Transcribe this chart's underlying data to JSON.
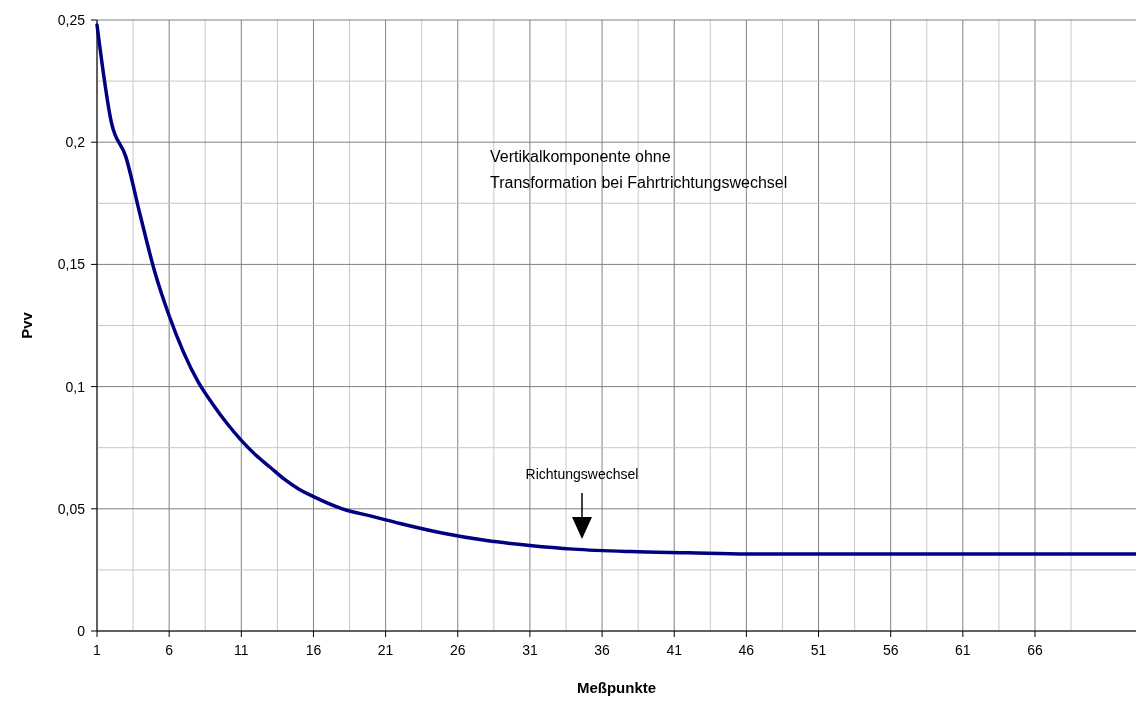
{
  "chart_data": {
    "type": "line",
    "xlabel": "Meßpunkte",
    "ylabel": "Pvv",
    "x": [
      1,
      2,
      3,
      4,
      5,
      6,
      7,
      8,
      9,
      10,
      11,
      12,
      13,
      14,
      15,
      16,
      18,
      20,
      22,
      25,
      28,
      31,
      34,
      38,
      42,
      46,
      52,
      60,
      73
    ],
    "series": [
      {
        "color": "#000080",
        "values": [
          0.248,
          0.208,
          0.194,
          0.17,
          0.147,
          0.129,
          0.114,
          0.102,
          0.093,
          0.085,
          0.078,
          0.072,
          0.067,
          0.062,
          0.058,
          0.055,
          0.05,
          0.047,
          0.044,
          0.04,
          0.037,
          0.035,
          0.0335,
          0.0325,
          0.032,
          0.0315,
          0.0315,
          0.0315,
          0.0315
        ]
      }
    ],
    "xlim": [
      1,
      73
    ],
    "xticks": [
      1,
      {
        "value": 3.5,
        "label": null
      },
      6,
      {
        "value": 8.5,
        "label": null
      },
      11,
      {
        "value": 13.5,
        "label": null
      },
      16,
      {
        "value": 18.5,
        "label": null
      },
      21,
      {
        "value": 23.5,
        "label": null
      },
      26,
      {
        "value": 28.5,
        "label": null
      },
      31,
      {
        "value": 33.5,
        "label": null
      },
      36,
      {
        "value": 38.5,
        "label": null
      },
      41,
      {
        "value": 43.5,
        "label": null
      },
      46,
      {
        "value": 48.5,
        "label": null
      },
      51,
      {
        "value": 53.5,
        "label": null
      },
      56,
      {
        "value": 58.5,
        "label": null
      },
      61,
      {
        "value": 63.5,
        "label": null
      },
      66,
      {
        "value": 68.5,
        "label": null
      }
    ],
    "ylim": [
      0,
      0.25
    ],
    "yticks": [
      0,
      {
        "value": 0.025,
        "label": null
      },
      {
        "value": 0.05,
        "label": "0,05"
      },
      {
        "value": 0.075,
        "label": null
      },
      {
        "value": 0.1,
        "label": "0,1"
      },
      {
        "value": 0.125,
        "label": null
      },
      {
        "value": 0.15,
        "label": "0,15"
      },
      {
        "value": 0.175,
        "label": null
      },
      {
        "value": 0.2,
        "label": "0,2"
      },
      {
        "value": 0.225,
        "label": null
      },
      {
        "value": 0.25,
        "label": "0,25"
      }
    ],
    "grid": true,
    "marker": "none",
    "line_style": "solid",
    "annotations": [
      "Vertikalkomponente ohne\nTransformation bei Fahrtrichtungswechsel",
      "Richtungswechsel"
    ]
  }
}
